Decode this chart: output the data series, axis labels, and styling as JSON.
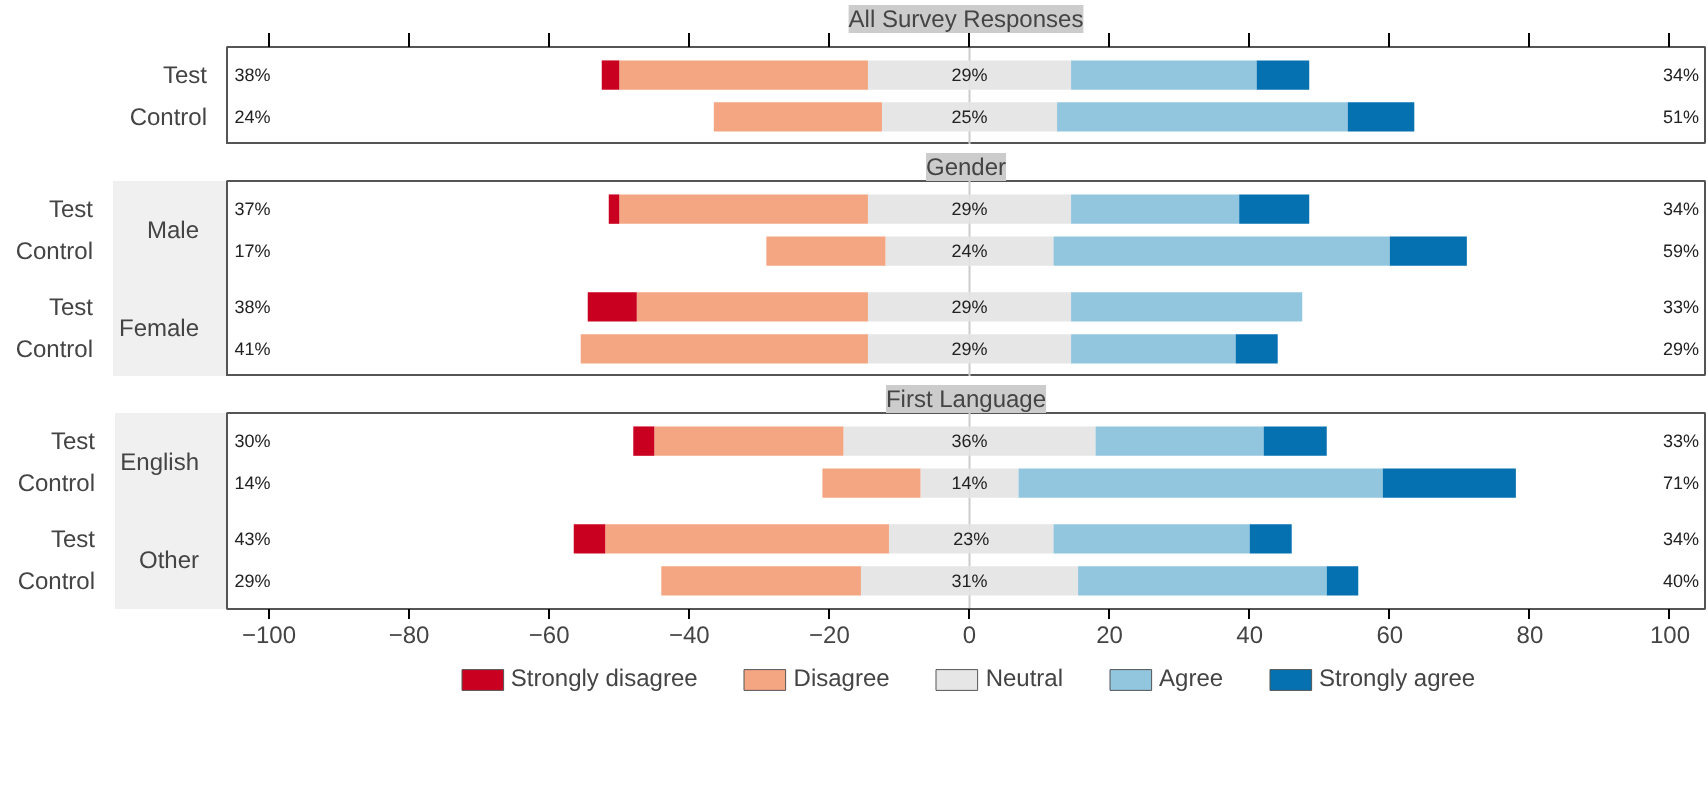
{
  "chart_data": [
    {
      "type": "bar",
      "orientation": "horizontal",
      "stacked": true,
      "title": "All Survey Responses",
      "categories": [
        "Test",
        "Control"
      ],
      "xlim": [
        -106,
        105
      ],
      "xticks": [
        -100,
        -80,
        -60,
        -40,
        -20,
        0,
        20,
        40,
        60,
        80,
        100
      ],
      "tick_labels": "y",
      "grid": false,
      "annotations": [
        "38%",
        "29%",
        "34%",
        "24%",
        "25%",
        "51%"
      ],
      "ref_lines": [
        {
          "axis": "x",
          "value": 0,
          "color": "#cccccc"
        }
      ],
      "series": [
        {
          "color": "#e6e6e6",
          "values": [
            -14.5,
            -12.5
          ]
        },
        {
          "color": "#f4a582",
          "values": [
            -35.5,
            -24
          ]
        },
        {
          "color": "#ca0020",
          "values": [
            -2.5,
            null
          ]
        },
        {
          "color": "#e6e6e6",
          "values": [
            14.5,
            12.5
          ]
        },
        {
          "color": "#92c5de",
          "values": [
            26.5,
            41.5
          ]
        },
        {
          "color": "#0571b0",
          "values": [
            7.5,
            9.5
          ]
        }
      ]
    },
    {
      "type": "bar",
      "orientation": "horizontal",
      "stacked": true,
      "title": "Gender",
      "categories": [
        "Test",
        "Control",
        "Test",
        "Control"
      ],
      "xlim": [
        -106,
        105
      ],
      "xticks": [
        -100,
        -80,
        -60,
        -40,
        -20,
        0,
        20,
        40,
        60,
        80,
        100
      ],
      "tick_labels": "y",
      "grid": false,
      "annotations": [
        "Male",
        "Female",
        "37%",
        "29%",
        "34%",
        "17%",
        "24%",
        "59%",
        "38%",
        "29%",
        "33%",
        "41%",
        "29%",
        "29%"
      ],
      "ref_lines": [
        {
          "axis": "x",
          "value": 0,
          "color": "#cccccc"
        }
      ],
      "series": [
        {
          "color": "#e6e6e6",
          "values": [
            -14.5,
            -12,
            -14.5,
            -14.5
          ]
        },
        {
          "color": "#f4a582",
          "values": [
            -35.5,
            -17,
            -33,
            -41
          ]
        },
        {
          "color": "#ca0020",
          "values": [
            -1.5,
            null,
            -7,
            null
          ]
        },
        {
          "color": "#e6e6e6",
          "values": [
            14.5,
            12,
            14.5,
            14.5
          ]
        },
        {
          "color": "#92c5de",
          "values": [
            24,
            48,
            33,
            23.5
          ]
        },
        {
          "color": "#0571b0",
          "values": [
            10,
            11,
            null,
            6
          ]
        }
      ]
    },
    {
      "type": "bar",
      "orientation": "horizontal",
      "stacked": true,
      "title": "First Language",
      "categories": [
        "Test",
        "Control",
        "Test",
        "Control"
      ],
      "xlim": [
        -106,
        105
      ],
      "xticks": [
        -100,
        -80,
        -60,
        -40,
        -20,
        0,
        20,
        40,
        60,
        80,
        100
      ],
      "legend": "bottom",
      "grid": false,
      "annotations": [
        "English",
        "Other",
        "30%",
        "36%",
        "33%",
        "14%",
        "14%",
        "71%",
        "43%",
        "23%",
        "34%",
        "29%",
        "31%",
        "40%"
      ],
      "ref_lines": [
        {
          "axis": "x",
          "value": 0,
          "color": "#cccccc"
        }
      ],
      "series": [
        {
          "name": "Neutral",
          "color": "#e6e6e6",
          "values": [
            -18,
            -7,
            -11.5,
            -15.5
          ]
        },
        {
          "name": "Disagree",
          "color": "#f4a582",
          "values": [
            -27,
            -14,
            -40.5,
            -28.5
          ]
        },
        {
          "name": "Strongly disagree",
          "color": "#ca0020",
          "values": [
            -3,
            null,
            -4.5,
            null
          ]
        },
        {
          "color": "#e6e6e6",
          "values": [
            18,
            7,
            12,
            15.5
          ]
        },
        {
          "name": "Agree",
          "color": "#92c5de",
          "values": [
            24,
            52,
            28,
            35.5
          ]
        },
        {
          "name": "Strongly agree",
          "color": "#0571b0",
          "values": [
            9,
            19,
            6,
            4.5
          ]
        }
      ]
    }
  ]
}
